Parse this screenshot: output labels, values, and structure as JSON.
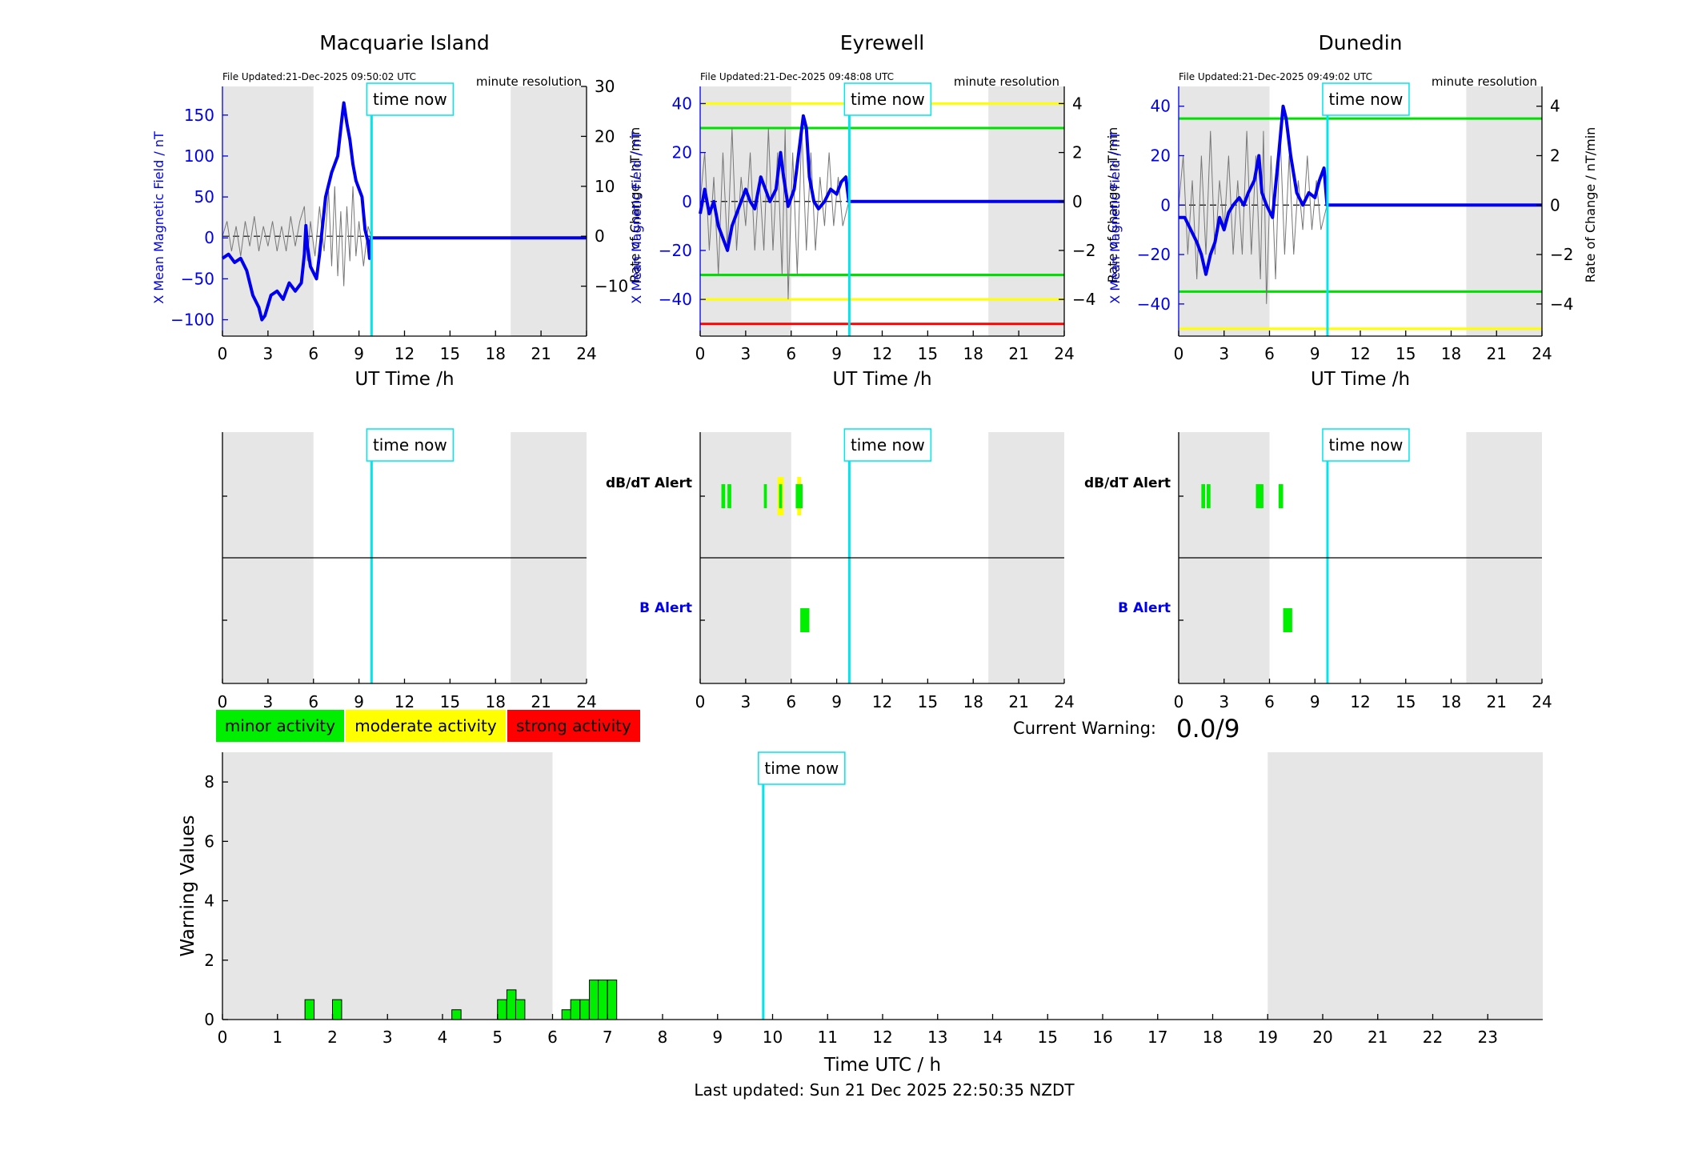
{
  "stations": [
    {
      "name": "Macquarie Island",
      "file_updated": "File Updated:21-Dec-2025 09:50:02 UTC",
      "resolution": "minute resolution",
      "ylabel_left": "X Mean Magnetic Field / nT",
      "ylabel_right": "Rate of Change / nT/min",
      "xlabel": "UT Time /h",
      "left_ylim": [
        -120,
        185
      ],
      "left_ticks": [
        -100,
        -50,
        0,
        50,
        100,
        150
      ],
      "right_ylim": [
        -20,
        30
      ],
      "right_ticks": [
        -10,
        0,
        10,
        20,
        30
      ],
      "x_ticks": [
        0,
        3,
        6,
        9,
        12,
        15,
        18,
        21,
        24
      ],
      "night_shading": [
        [
          0,
          6
        ],
        [
          19,
          24
        ]
      ],
      "time_now": 9.83,
      "time_now_label": "time now",
      "thresholds": [],
      "field_series": [
        [
          0,
          -25
        ],
        [
          0.4,
          -20
        ],
        [
          0.8,
          -30
        ],
        [
          1.2,
          -25
        ],
        [
          1.6,
          -40
        ],
        [
          2.0,
          -70
        ],
        [
          2.4,
          -85
        ],
        [
          2.6,
          -100
        ],
        [
          2.8,
          -95
        ],
        [
          3.2,
          -70
        ],
        [
          3.6,
          -65
        ],
        [
          4.0,
          -75
        ],
        [
          4.4,
          -55
        ],
        [
          4.8,
          -65
        ],
        [
          5.2,
          -55
        ],
        [
          5.4,
          -20
        ],
        [
          5.5,
          15
        ],
        [
          5.6,
          -10
        ],
        [
          5.8,
          -35
        ],
        [
          6.2,
          -50
        ],
        [
          6.4,
          -20
        ],
        [
          6.8,
          50
        ],
        [
          7.2,
          80
        ],
        [
          7.6,
          100
        ],
        [
          7.9,
          150
        ],
        [
          8.0,
          165
        ],
        [
          8.2,
          140
        ],
        [
          8.4,
          120
        ],
        [
          8.6,
          90
        ],
        [
          8.8,
          70
        ],
        [
          9.2,
          50
        ],
        [
          9.4,
          10
        ],
        [
          9.6,
          -5
        ],
        [
          9.7,
          -25
        ],
        [
          9.8,
          0
        ],
        [
          24,
          0
        ]
      ],
      "roc_series": [
        [
          0,
          0
        ],
        [
          0.3,
          3
        ],
        [
          0.6,
          -3
        ],
        [
          0.9,
          2
        ],
        [
          1.2,
          -4
        ],
        [
          1.5,
          3
        ],
        [
          1.8,
          -2
        ],
        [
          2.1,
          4
        ],
        [
          2.4,
          -3
        ],
        [
          2.7,
          2
        ],
        [
          3.0,
          -2
        ],
        [
          3.3,
          3
        ],
        [
          3.6,
          -3
        ],
        [
          3.9,
          2
        ],
        [
          4.2,
          -3
        ],
        [
          4.5,
          4
        ],
        [
          4.8,
          -2
        ],
        [
          5.1,
          3
        ],
        [
          5.4,
          6
        ],
        [
          5.6,
          -5
        ],
        [
          5.8,
          3
        ],
        [
          6.1,
          -4
        ],
        [
          6.4,
          6
        ],
        [
          6.7,
          -3
        ],
        [
          7.0,
          9
        ],
        [
          7.2,
          -6
        ],
        [
          7.4,
          10
        ],
        [
          7.6,
          -8
        ],
        [
          7.8,
          5
        ],
        [
          8.0,
          -10
        ],
        [
          8.2,
          6
        ],
        [
          8.4,
          -5
        ],
        [
          8.6,
          10
        ],
        [
          8.8,
          -4
        ],
        [
          9.0,
          3
        ],
        [
          9.3,
          -6
        ],
        [
          9.6,
          2
        ],
        [
          9.8,
          0
        ],
        [
          24,
          0
        ]
      ]
    },
    {
      "name": "Eyrewell",
      "file_updated": "File Updated:21-Dec-2025 09:48:08 UTC",
      "resolution": "minute resolution",
      "ylabel_left": "X Mean Magnetic Field / nT",
      "ylabel_right": "Rate of Change / nT/min",
      "xlabel": "UT Time /h",
      "left_ylim": [
        -55,
        47
      ],
      "left_ticks": [
        -40,
        -20,
        0,
        20,
        40
      ],
      "right_ylim": [
        -5.5,
        4.7
      ],
      "right_ticks": [
        -4,
        -2,
        0,
        2,
        4
      ],
      "x_ticks": [
        0,
        3,
        6,
        9,
        12,
        15,
        18,
        21,
        24
      ],
      "night_shading": [
        [
          0,
          6
        ],
        [
          19,
          24
        ]
      ],
      "time_now": 9.83,
      "time_now_label": "time now",
      "thresholds": [
        {
          "value": 40,
          "color": "#ffff00"
        },
        {
          "value": 30,
          "color": "#00e000"
        },
        {
          "value": -30,
          "color": "#00e000"
        },
        {
          "value": -40,
          "color": "#ffff00"
        },
        {
          "value": -50,
          "color": "#ff0000"
        }
      ],
      "field_series": [
        [
          0,
          -5
        ],
        [
          0.3,
          5
        ],
        [
          0.6,
          -5
        ],
        [
          0.9,
          0
        ],
        [
          1.2,
          -10
        ],
        [
          1.5,
          -15
        ],
        [
          1.8,
          -20
        ],
        [
          2.1,
          -10
        ],
        [
          2.4,
          -5
        ],
        [
          2.7,
          0
        ],
        [
          3.0,
          5
        ],
        [
          3.3,
          0
        ],
        [
          3.6,
          -3
        ],
        [
          4.0,
          10
        ],
        [
          4.3,
          5
        ],
        [
          4.6,
          0
        ],
        [
          5.0,
          5
        ],
        [
          5.3,
          20
        ],
        [
          5.5,
          10
        ],
        [
          5.8,
          -2
        ],
        [
          6.2,
          5
        ],
        [
          6.6,
          25
        ],
        [
          6.8,
          35
        ],
        [
          7.0,
          30
        ],
        [
          7.2,
          10
        ],
        [
          7.5,
          0
        ],
        [
          7.8,
          -3
        ],
        [
          8.2,
          0
        ],
        [
          8.6,
          5
        ],
        [
          9.0,
          3
        ],
        [
          9.3,
          8
        ],
        [
          9.6,
          10
        ],
        [
          9.8,
          0
        ],
        [
          24,
          0
        ]
      ],
      "roc_series": [
        [
          0,
          0
        ],
        [
          0.3,
          2
        ],
        [
          0.6,
          -2
        ],
        [
          0.9,
          1
        ],
        [
          1.2,
          -3
        ],
        [
          1.5,
          2
        ],
        [
          1.8,
          -2
        ],
        [
          2.1,
          3
        ],
        [
          2.4,
          -2
        ],
        [
          2.7,
          1
        ],
        [
          3.0,
          -1
        ],
        [
          3.3,
          2
        ],
        [
          3.6,
          -2
        ],
        [
          3.9,
          1
        ],
        [
          4.2,
          -2
        ],
        [
          4.5,
          3
        ],
        [
          4.8,
          -2
        ],
        [
          5.1,
          2
        ],
        [
          5.4,
          -3
        ],
        [
          5.6,
          3
        ],
        [
          5.8,
          -4
        ],
        [
          6.1,
          2
        ],
        [
          6.4,
          -3
        ],
        [
          6.7,
          3
        ],
        [
          7.0,
          -2
        ],
        [
          7.3,
          2
        ],
        [
          7.6,
          -2
        ],
        [
          7.9,
          1
        ],
        [
          8.2,
          -1
        ],
        [
          8.5,
          2
        ],
        [
          8.8,
          -1
        ],
        [
          9.1,
          1
        ],
        [
          9.4,
          -1
        ],
        [
          9.8,
          0
        ],
        [
          24,
          0
        ]
      ]
    },
    {
      "name": "Dunedin",
      "file_updated": "File Updated:21-Dec-2025 09:49:02 UTC",
      "resolution": "minute resolution",
      "ylabel_left": "X Mean Magnetic Field / nT",
      "ylabel_right": "Rate of Change / nT/min",
      "xlabel": "UT Time /h",
      "left_ylim": [
        -53,
        48
      ],
      "left_ticks": [
        -40,
        -20,
        0,
        20,
        40
      ],
      "right_ylim": [
        -5.3,
        4.8
      ],
      "right_ticks": [
        -4,
        -2,
        0,
        2,
        4
      ],
      "x_ticks": [
        0,
        3,
        6,
        9,
        12,
        15,
        18,
        21,
        24
      ],
      "night_shading": [
        [
          0,
          6
        ],
        [
          19,
          24
        ]
      ],
      "time_now": 9.83,
      "time_now_label": "time now",
      "thresholds": [
        {
          "value": 35,
          "color": "#00e000"
        },
        {
          "value": -35,
          "color": "#00e000"
        },
        {
          "value": -50,
          "color": "#ffff00"
        }
      ],
      "field_series": [
        [
          0,
          -5
        ],
        [
          0.4,
          -5
        ],
        [
          0.8,
          -10
        ],
        [
          1.2,
          -15
        ],
        [
          1.5,
          -20
        ],
        [
          1.8,
          -28
        ],
        [
          2.1,
          -20
        ],
        [
          2.4,
          -15
        ],
        [
          2.7,
          -5
        ],
        [
          3.0,
          -10
        ],
        [
          3.3,
          -3
        ],
        [
          3.6,
          0
        ],
        [
          4.0,
          3
        ],
        [
          4.3,
          0
        ],
        [
          4.6,
          5
        ],
        [
          5.0,
          10
        ],
        [
          5.3,
          20
        ],
        [
          5.5,
          5
        ],
        [
          5.8,
          0
        ],
        [
          6.2,
          -5
        ],
        [
          6.6,
          20
        ],
        [
          6.9,
          40
        ],
        [
          7.1,
          35
        ],
        [
          7.4,
          20
        ],
        [
          7.8,
          5
        ],
        [
          8.2,
          0
        ],
        [
          8.6,
          5
        ],
        [
          9.0,
          3
        ],
        [
          9.3,
          10
        ],
        [
          9.6,
          15
        ],
        [
          9.8,
          0
        ],
        [
          24,
          0
        ]
      ],
      "roc_series": [
        [
          0,
          0
        ],
        [
          0.3,
          2
        ],
        [
          0.6,
          -2
        ],
        [
          0.9,
          1
        ],
        [
          1.2,
          -3
        ],
        [
          1.5,
          2
        ],
        [
          1.8,
          -2
        ],
        [
          2.1,
          3
        ],
        [
          2.4,
          -2
        ],
        [
          2.7,
          1
        ],
        [
          3.0,
          -1
        ],
        [
          3.3,
          2
        ],
        [
          3.6,
          -2
        ],
        [
          3.9,
          1
        ],
        [
          4.2,
          -2
        ],
        [
          4.5,
          3
        ],
        [
          4.8,
          -2
        ],
        [
          5.1,
          2
        ],
        [
          5.4,
          -3
        ],
        [
          5.6,
          3
        ],
        [
          5.8,
          -4
        ],
        [
          6.1,
          2
        ],
        [
          6.4,
          -3
        ],
        [
          6.7,
          3
        ],
        [
          7.0,
          -2
        ],
        [
          7.3,
          2
        ],
        [
          7.6,
          -2
        ],
        [
          7.9,
          1
        ],
        [
          8.2,
          -1
        ],
        [
          8.5,
          2
        ],
        [
          8.8,
          -1
        ],
        [
          9.1,
          1
        ],
        [
          9.4,
          -1
        ],
        [
          9.8,
          0
        ],
        [
          24,
          0
        ]
      ]
    }
  ],
  "alert_panels": [
    {
      "station": "Macquarie Island",
      "dbdt_label": "dB/dT Alert",
      "b_label": "B Alert",
      "dbdt_bars": [],
      "b_bars": []
    },
    {
      "station": "Eyrewell",
      "dbdt_label": "dB/dT Alert",
      "b_label": "B Alert",
      "dbdt_bars": [
        {
          "start": 1.4,
          "end": 1.65,
          "level": "minor"
        },
        {
          "start": 1.8,
          "end": 2.05,
          "level": "minor"
        },
        {
          "start": 4.2,
          "end": 4.4,
          "level": "minor"
        },
        {
          "start": 5.1,
          "end": 5.5,
          "level": "moderate"
        },
        {
          "start": 5.2,
          "end": 5.4,
          "level": "minor"
        },
        {
          "start": 6.4,
          "end": 6.65,
          "level": "moderate"
        },
        {
          "start": 6.3,
          "end": 6.75,
          "level": "minor"
        }
      ],
      "b_bars": [
        {
          "start": 6.6,
          "end": 7.2,
          "level": "minor"
        }
      ]
    },
    {
      "station": "Dunedin",
      "dbdt_label": "dB/dT Alert",
      "b_label": "B Alert",
      "dbdt_bars": [
        {
          "start": 1.5,
          "end": 1.75,
          "level": "minor"
        },
        {
          "start": 1.85,
          "end": 2.1,
          "level": "minor"
        },
        {
          "start": 5.1,
          "end": 5.6,
          "level": "minor"
        },
        {
          "start": 6.6,
          "end": 6.9,
          "level": "minor"
        }
      ],
      "b_bars": [
        {
          "start": 6.9,
          "end": 7.5,
          "level": "minor"
        }
      ]
    }
  ],
  "alert_x_ticks": [
    0,
    3,
    6,
    9,
    12,
    15,
    18,
    21,
    24
  ],
  "legend": [
    {
      "label": "minor activity",
      "color": "#00ee00"
    },
    {
      "label": "moderate activity",
      "color": "#ffff00"
    },
    {
      "label": "strong activity",
      "color": "#ff0000"
    }
  ],
  "level_colors": {
    "minor": "#00ee00",
    "moderate": "#ffff00",
    "strong": "#ff0000"
  },
  "current_warning": {
    "label": "Current Warning:",
    "value": "0.0/9"
  },
  "chart_data": {
    "type": "bar",
    "xlabel": "Time UTC / h",
    "ylabel": "Warning Values",
    "xlim": [
      0,
      24
    ],
    "ylim": [
      0,
      9
    ],
    "x_ticks": [
      0,
      1,
      2,
      3,
      4,
      5,
      6,
      7,
      8,
      9,
      10,
      11,
      12,
      13,
      14,
      15,
      16,
      17,
      18,
      19,
      20,
      21,
      22,
      23
    ],
    "y_ticks": [
      0,
      2,
      4,
      6,
      8
    ],
    "night_shading": [
      [
        0,
        6
      ],
      [
        19,
        24
      ]
    ],
    "time_now": 9.83,
    "time_now_label": "time now",
    "bar_width_h": 0.1667,
    "bars": [
      {
        "x": 1.5,
        "value": 0.67
      },
      {
        "x": 2.0,
        "value": 0.67
      },
      {
        "x": 4.17,
        "value": 0.33
      },
      {
        "x": 5.0,
        "value": 0.67
      },
      {
        "x": 5.17,
        "value": 1.0
      },
      {
        "x": 5.33,
        "value": 0.67
      },
      {
        "x": 6.17,
        "value": 0.33
      },
      {
        "x": 6.33,
        "value": 0.67
      },
      {
        "x": 6.5,
        "value": 0.67
      },
      {
        "x": 6.67,
        "value": 1.33
      },
      {
        "x": 6.83,
        "value": 1.33
      },
      {
        "x": 7.0,
        "value": 1.33
      }
    ],
    "bar_color": "#00ee00"
  },
  "footer": "Last updated: Sun 21 Dec 2025 22:50:35 NZDT"
}
